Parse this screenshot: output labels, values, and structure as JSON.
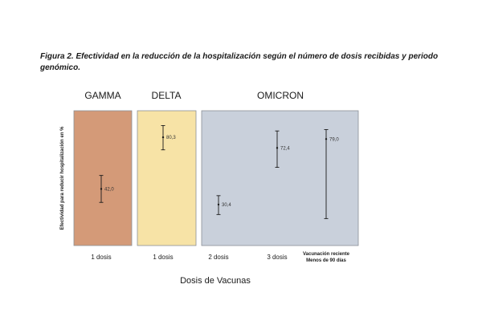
{
  "caption": "Figura 2. Efectividad en la reducción de la hospitalización según el número de dosis recibidas y periodo genómico.",
  "colors": {
    "gamma": "#d49a78",
    "delta": "#f7e3a6",
    "omicron": "#c9d0db",
    "border": "#8a8f96",
    "errorbar": "#1a1a1a"
  },
  "chart_data": {
    "type": "scatter",
    "title": "",
    "ylabel": "Efectividad para reducir hospitalización en %",
    "xlabel": "Dosis de Vacunas",
    "ylim": [
      0,
      100
    ],
    "grid": false,
    "periods": [
      {
        "name": "GAMMA",
        "color": "#d49a78",
        "categories": [
          0
        ]
      },
      {
        "name": "DELTA",
        "color": "#f7e3a6",
        "categories": [
          1
        ]
      },
      {
        "name": "OMICRON",
        "color": "#c9d0db",
        "categories": [
          2,
          3,
          4
        ]
      }
    ],
    "points": [
      {
        "category": "1 dosis",
        "category_line2": "",
        "period": "GAMMA",
        "value": 42.0,
        "label": "42,0",
        "low": 32,
        "high": 52
      },
      {
        "category": "1 dosis",
        "category_line2": "",
        "period": "DELTA",
        "value": 80.3,
        "label": "80,3",
        "low": 71,
        "high": 89
      },
      {
        "category": "2 dosis",
        "category_line2": "",
        "period": "OMICRON",
        "value": 30.4,
        "label": "30,4",
        "low": 23,
        "high": 37
      },
      {
        "category": "3 dosis",
        "category_line2": "",
        "period": "OMICRON",
        "value": 72.4,
        "label": "72,4",
        "low": 58,
        "high": 85
      },
      {
        "category": "Vacunación reciente",
        "category_line2": "Menos de 90 días",
        "period": "OMICRON",
        "value": 79.0,
        "label": "79,0",
        "low": 20,
        "high": 86
      }
    ]
  }
}
